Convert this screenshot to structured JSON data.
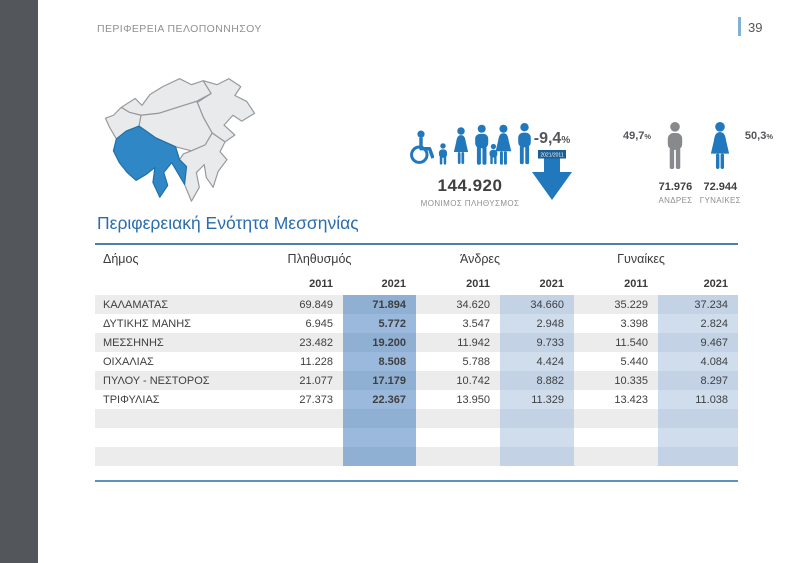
{
  "page": {
    "header_title": "ΠΕΡΙΦΕΡΕΙΑ ΠΕΛΟΠΟΝΝΗΣΟΥ",
    "page_number": "39"
  },
  "section": {
    "title": "Περιφερειακή Ενότητα Μεσσηνίας"
  },
  "map": {
    "name": "peloponnese-region-map",
    "highlighted_unit": "Μεσσηνία",
    "highlight_color": "#2F87C5",
    "region_fill": "#E9EAEB",
    "region_stroke": "#97999D"
  },
  "infographic": {
    "population_total": "144.920",
    "population_label": "ΜΟΝΙΜΟΣ ΠΛΗΘΥΣΜΟΣ",
    "population_icons": [
      "wheelchair-icon",
      "child-icon",
      "woman-icon",
      "family-icon",
      "man-icon"
    ],
    "change_value": "-9,4",
    "change_unit": "%",
    "change_period": "2021/2011",
    "male": {
      "pct": "49,7",
      "pct_unit": "%",
      "value": "71.976",
      "label": "ΑΝΔΡΕΣ"
    },
    "female": {
      "pct": "50,3",
      "pct_unit": "%",
      "value": "72.944",
      "label": "ΓΥΝΑΙΚΕΣ"
    }
  },
  "table": {
    "municipality_header": "Δήμος",
    "group_headers": [
      "Πληθυσμός",
      "Άνδρες",
      "Γυναίκες"
    ],
    "year_headers": [
      "2011",
      "2021"
    ],
    "rows": [
      {
        "name": "ΚΑΛΑΜΑΤΑΣ",
        "pop2011": "69.849",
        "pop2021": "71.894",
        "men2011": "34.620",
        "men2021": "34.660",
        "wom2011": "35.229",
        "wom2021": "37.234"
      },
      {
        "name": "ΔΥΤΙΚΗΣ ΜΑΝΗΣ",
        "pop2011": "6.945",
        "pop2021": "5.772",
        "men2011": "3.547",
        "men2021": "2.948",
        "wom2011": "3.398",
        "wom2021": "2.824"
      },
      {
        "name": "ΜΕΣΣΗΝΗΣ",
        "pop2011": "23.482",
        "pop2021": "19.200",
        "men2011": "11.942",
        "men2021": "9.733",
        "wom2011": "11.540",
        "wom2021": "9.467"
      },
      {
        "name": "ΟΙΧΑΛΙΑΣ",
        "pop2011": "11.228",
        "pop2021": "8.508",
        "men2011": "5.788",
        "men2021": "4.424",
        "wom2011": "5.440",
        "wom2021": "4.084"
      },
      {
        "name": "ΠΥΛΟΥ - ΝΕΣΤΟΡΟΣ",
        "pop2011": "21.077",
        "pop2021": "17.179",
        "men2011": "10.742",
        "men2021": "8.882",
        "wom2011": "10.335",
        "wom2021": "8.297"
      },
      {
        "name": "ΤΡΙΦΥΛΙΑΣ",
        "pop2011": "27.373",
        "pop2021": "22.367",
        "men2011": "13.950",
        "men2021": "11.329",
        "wom2011": "13.423",
        "wom2021": "11.038"
      }
    ],
    "empty_row_count": 3
  },
  "colors": {
    "accent_blue": "#2178BC",
    "title_blue": "#2A6DAD",
    "band_strong": "#8FAFD3",
    "band_light": "#C3D2E4",
    "row_stripe": "#ECECEC",
    "rule_blue": "#4E7FA8",
    "sidebar_gray": "#53565B",
    "male_gray": "#87898C"
  }
}
